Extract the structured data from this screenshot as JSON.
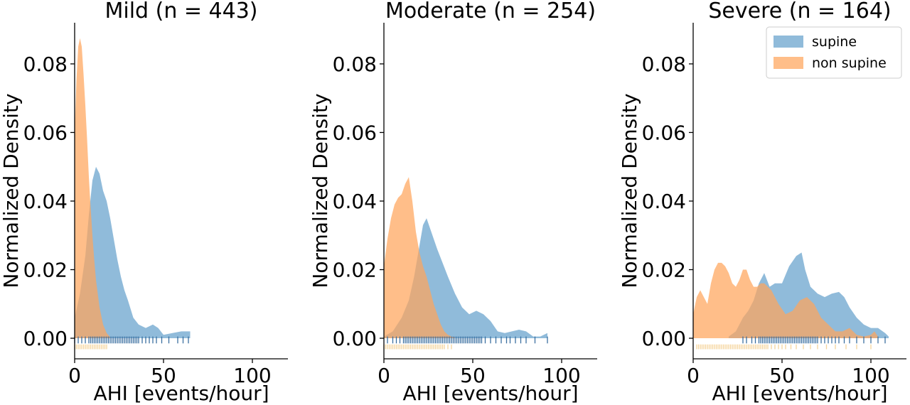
{
  "colors": {
    "supine": "#5b9bc8",
    "supine_rug": "#3b6fa0",
    "non_supine": "#ffa55c",
    "non_supine_rug": "#f5d49a"
  },
  "chart_data": [
    {
      "type": "area",
      "title": "Mild  (n = 443)",
      "xlabel": "AHI [events/hour]",
      "ylabel": "Normalized Density",
      "xlim": [
        0,
        120
      ],
      "ylim": [
        -0.006,
        0.092
      ],
      "xticks": [
        "0",
        "50",
        "100"
      ],
      "yticks": [
        "0.00",
        "0.02",
        "0.04",
        "0.06",
        "0.08"
      ],
      "legend": null,
      "series": [
        {
          "name": "supine",
          "x": [
            0,
            3,
            6,
            8,
            10,
            12,
            14,
            16,
            18,
            20,
            22,
            24,
            26,
            28,
            30,
            33,
            36,
            40,
            44,
            47,
            50,
            55,
            60,
            65
          ],
          "y": [
            0.006,
            0.013,
            0.024,
            0.036,
            0.046,
            0.05,
            0.048,
            0.043,
            0.04,
            0.035,
            0.029,
            0.023,
            0.018,
            0.014,
            0.011,
            0.006,
            0.004,
            0.003,
            0.004,
            0.003,
            0.001,
            0.0015,
            0.002,
            0.002
          ]
        },
        {
          "name": "non supine",
          "x": [
            0,
            1,
            2,
            3,
            4,
            5,
            6,
            7,
            8,
            9,
            10,
            11,
            12,
            14,
            16,
            18,
            20
          ],
          "y": [
            0.06,
            0.075,
            0.085,
            0.0875,
            0.085,
            0.077,
            0.068,
            0.058,
            0.047,
            0.038,
            0.03,
            0.023,
            0.017,
            0.009,
            0.004,
            0.0015,
            0.0003
          ]
        }
      ]
    },
    {
      "type": "area",
      "title": "Moderate (n = 254)",
      "xlabel": "AHI [events/hour]",
      "ylabel": "Normalized Density",
      "xlim": [
        0,
        120
      ],
      "ylim": [
        -0.006,
        0.092
      ],
      "xticks": [
        "0",
        "50",
        "100"
      ],
      "yticks": [
        "0.00",
        "0.02",
        "0.04",
        "0.06",
        "0.08"
      ],
      "legend": null,
      "series": [
        {
          "name": "supine",
          "x": [
            0,
            5,
            10,
            14,
            17,
            20,
            22,
            24,
            26,
            28,
            30,
            33,
            36,
            40,
            44,
            48,
            52,
            56,
            60,
            64,
            68,
            72,
            76,
            80,
            84,
            88,
            92
          ],
          "y": [
            0.0005,
            0.002,
            0.006,
            0.011,
            0.018,
            0.027,
            0.033,
            0.035,
            0.032,
            0.029,
            0.026,
            0.022,
            0.018,
            0.013,
            0.009,
            0.007,
            0.008,
            0.007,
            0.005,
            0.002,
            0.0015,
            0.002,
            0.0025,
            0.002,
            0.0005,
            0.0005,
            0.0015
          ]
        },
        {
          "name": "non supine",
          "x": [
            0,
            2,
            4,
            6,
            8,
            10,
            12,
            14,
            16,
            18,
            20,
            22,
            24,
            26,
            28,
            30,
            32,
            34,
            36,
            38,
            40
          ],
          "y": [
            0.021,
            0.029,
            0.035,
            0.039,
            0.041,
            0.042,
            0.045,
            0.047,
            0.04,
            0.031,
            0.025,
            0.021,
            0.018,
            0.014,
            0.01,
            0.007,
            0.004,
            0.002,
            0.001,
            0.0005,
            0.0002
          ]
        }
      ]
    },
    {
      "type": "area",
      "title": "Severe (n = 164)",
      "xlabel": "AHI [events/hour]",
      "ylabel": "Normalized Density",
      "xlim": [
        0,
        120
      ],
      "ylim": [
        -0.006,
        0.092
      ],
      "xticks": [
        "0",
        "50",
        "100"
      ],
      "yticks": [
        "0.00",
        "0.02",
        "0.04",
        "0.06",
        "0.08"
      ],
      "legend": {
        "position": "top-right",
        "entries": [
          "supine",
          "non supine"
        ]
      },
      "series": [
        {
          "name": "supine",
          "x": [
            20,
            24,
            28,
            31,
            34,
            37,
            40,
            43,
            46,
            50,
            54,
            58,
            61,
            63,
            66,
            70,
            74,
            78,
            82,
            85,
            88,
            92,
            96,
            100,
            104,
            108,
            110
          ],
          "y": [
            0.0005,
            0.002,
            0.006,
            0.008,
            0.011,
            0.016,
            0.019,
            0.015,
            0.016,
            0.016,
            0.021,
            0.024,
            0.025,
            0.02,
            0.015,
            0.013,
            0.012,
            0.013,
            0.0135,
            0.012,
            0.009,
            0.006,
            0.004,
            0.003,
            0.003,
            0.0015,
            0.0005
          ]
        },
        {
          "name": "non supine",
          "x": [
            0,
            2,
            4,
            6,
            8,
            10,
            12,
            14,
            16,
            18,
            20,
            22,
            24,
            26,
            28,
            30,
            32,
            34,
            36,
            38,
            40,
            44,
            48,
            52,
            56,
            60,
            64,
            68,
            72,
            76,
            80,
            84,
            88,
            92,
            96,
            100,
            102,
            104
          ],
          "y": [
            0.007,
            0.012,
            0.014,
            0.012,
            0.01,
            0.016,
            0.02,
            0.022,
            0.022,
            0.021,
            0.019,
            0.016,
            0.015,
            0.017,
            0.02,
            0.02,
            0.017,
            0.015,
            0.015,
            0.016,
            0.016,
            0.014,
            0.01,
            0.007,
            0.008,
            0.011,
            0.012,
            0.01,
            0.006,
            0.004,
            0.002,
            0.002,
            0.003,
            0.001,
            0.0005,
            0.001,
            0.002,
            0.0005
          ]
        }
      ]
    }
  ]
}
